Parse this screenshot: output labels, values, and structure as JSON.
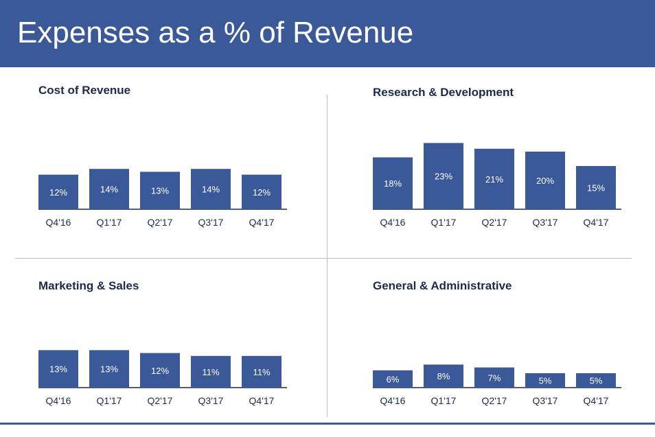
{
  "page": {
    "title": "Expenses as a % of Revenue",
    "colors": {
      "header": "#3b5998",
      "bar": "#3b5998",
      "text": "#1c2a4a"
    }
  },
  "chart_data": [
    {
      "type": "bar",
      "title": "Cost of Revenue",
      "categories": [
        "Q4'16",
        "Q1'17",
        "Q2'17",
        "Q3'17",
        "Q4'17"
      ],
      "values": [
        12,
        14,
        13,
        14,
        12
      ],
      "labels": [
        "12%",
        "14%",
        "13%",
        "14%",
        "12%"
      ],
      "ylim": [
        0,
        25
      ]
    },
    {
      "type": "bar",
      "title": "Research & Development",
      "categories": [
        "Q4'16",
        "Q1'17",
        "Q2'17",
        "Q3'17",
        "Q4'17"
      ],
      "values": [
        18,
        23,
        21,
        20,
        15
      ],
      "labels": [
        "18%",
        "23%",
        "21%",
        "20%",
        "15%"
      ],
      "ylim": [
        0,
        25
      ]
    },
    {
      "type": "bar",
      "title": "Marketing & Sales",
      "categories": [
        "Q4'16",
        "Q1'17",
        "Q2'17",
        "Q3'17",
        "Q4'17"
      ],
      "values": [
        13,
        13,
        12,
        11,
        11
      ],
      "labels": [
        "13%",
        "13%",
        "12%",
        "11%",
        "11%"
      ],
      "ylim": [
        0,
        25
      ]
    },
    {
      "type": "bar",
      "title": "General & Administrative",
      "categories": [
        "Q4'16",
        "Q1'17",
        "Q2'17",
        "Q3'17",
        "Q4'17"
      ],
      "values": [
        6,
        8,
        7,
        5,
        5
      ],
      "labels": [
        "6%",
        "8%",
        "7%",
        "5%",
        "5%"
      ],
      "ylim": [
        0,
        25
      ]
    }
  ]
}
